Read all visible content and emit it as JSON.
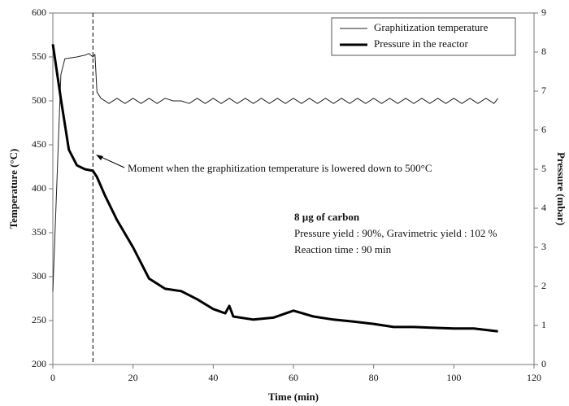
{
  "chart_data": {
    "type": "line",
    "xlabel": "Time (min)",
    "ylabel": "Temperature (°C)",
    "y2label": "Pressure (mbar)",
    "xlim": [
      0,
      120
    ],
    "xticks": [
      0,
      20,
      40,
      60,
      80,
      100,
      120
    ],
    "ylim": [
      200,
      600
    ],
    "yticks": [
      200,
      250,
      300,
      350,
      400,
      450,
      500,
      550,
      600
    ],
    "y2lim": [
      0,
      9
    ],
    "y2ticks": [
      0,
      1,
      2,
      3,
      4,
      5,
      6,
      7,
      8,
      9
    ],
    "vline": 10,
    "annotation": "Moment when the graphitization temperature is lowered down to 500°C",
    "info": {
      "title": "8 µg of carbon",
      "lines": [
        "Pressure yield : 90%, Gravimetric yield : 102 %",
        "Reaction time : 90 min"
      ]
    },
    "legend": "top-right",
    "series": [
      {
        "name": "Graphitization temperature",
        "color": "#222222",
        "width": 1,
        "x": [
          0,
          2,
          3,
          6,
          8,
          9,
          10,
          10.5,
          11,
          12,
          14,
          16,
          18,
          20,
          22,
          24,
          26,
          28,
          30,
          32,
          34,
          36,
          38,
          40,
          42,
          44,
          46,
          48,
          50,
          52,
          54,
          56,
          58,
          60,
          62,
          64,
          66,
          68,
          70,
          72,
          74,
          76,
          78,
          80,
          82,
          84,
          86,
          88,
          90,
          92,
          94,
          96,
          98,
          100,
          102,
          104,
          106,
          108,
          110,
          111
        ],
        "values": [
          283,
          530,
          548,
          550,
          552,
          554,
          550,
          553,
          510,
          503,
          497,
          503,
          497,
          503,
          497,
          503,
          497,
          503,
          500,
          500,
          497,
          503,
          497,
          503,
          497,
          503,
          497,
          503,
          497,
          503,
          497,
          503,
          497,
          503,
          497,
          503,
          497,
          503,
          497,
          503,
          497,
          503,
          497,
          503,
          497,
          503,
          497,
          503,
          497,
          503,
          497,
          503,
          497,
          503,
          497,
          503,
          497,
          503,
          497,
          503
        ]
      },
      {
        "name": "Pressure in the reactor",
        "color": "#000000",
        "width": 3,
        "axis": "y2",
        "x": [
          0,
          2,
          4,
          6,
          8,
          10,
          11,
          13,
          16,
          20,
          24,
          28,
          32,
          36,
          40,
          43,
          44,
          45,
          50,
          55,
          60,
          65,
          70,
          75,
          80,
          85,
          90,
          95,
          100,
          105,
          111
        ],
        "values": [
          8.2,
          6.8,
          5.5,
          5.1,
          5.0,
          4.96,
          4.8,
          4.33,
          3.7,
          3.0,
          2.2,
          1.94,
          1.88,
          1.67,
          1.42,
          1.31,
          1.5,
          1.23,
          1.15,
          1.2,
          1.38,
          1.23,
          1.15,
          1.1,
          1.04,
          0.96,
          0.96,
          0.94,
          0.92,
          0.92,
          0.85
        ]
      }
    ]
  }
}
